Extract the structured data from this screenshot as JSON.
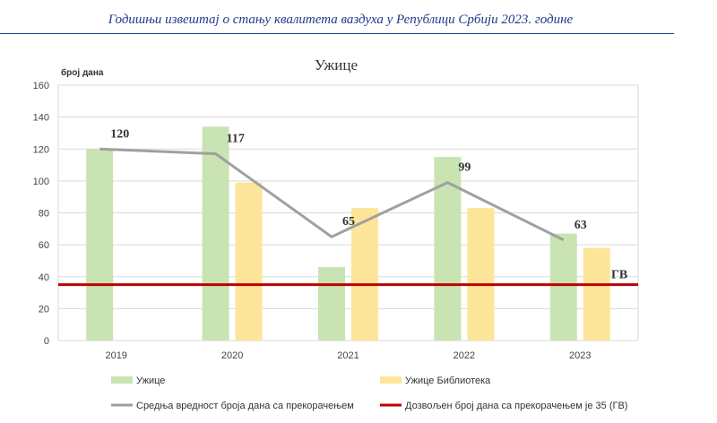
{
  "header": {
    "title": "Годишњи извештај о стању квалитета ваздуха у Републици Србији 2023. године"
  },
  "colors": {
    "header": "#1f3a8a",
    "uzice_bar": "#c9e3b3",
    "biblioteka_bar": "#fde59a",
    "average_line": "#a0a0a0",
    "limit_line": "#c00000",
    "grid": "#d9d9d9"
  },
  "chart_data": {
    "type": "bar",
    "title": "Ужице",
    "ylabel": "број дана",
    "xlabel": "",
    "ylim": [
      0,
      160
    ],
    "yticks": [
      0,
      20,
      40,
      60,
      80,
      100,
      120,
      140,
      160
    ],
    "grid": true,
    "legend_position": "bottom",
    "categories": [
      "2019",
      "2020",
      "2021",
      "2022",
      "2023"
    ],
    "series": [
      {
        "name": "Ужице",
        "type": "bar",
        "values": [
          120,
          134,
          46,
          115,
          67
        ]
      },
      {
        "name": "Ужице Библиотека",
        "type": "bar",
        "values": [
          null,
          99,
          83,
          83,
          58
        ]
      },
      {
        "name": "Средња вредност броја дана са прекорачењем",
        "type": "line",
        "values": [
          120,
          117,
          65,
          99,
          63
        ],
        "labels": [
          "120",
          "117",
          "65",
          "99",
          "63"
        ]
      }
    ],
    "reference_line": {
      "name": "Дозвољен број дана са прекорачењем је 35 (ГВ)",
      "value": 35,
      "label": "ГВ"
    }
  }
}
